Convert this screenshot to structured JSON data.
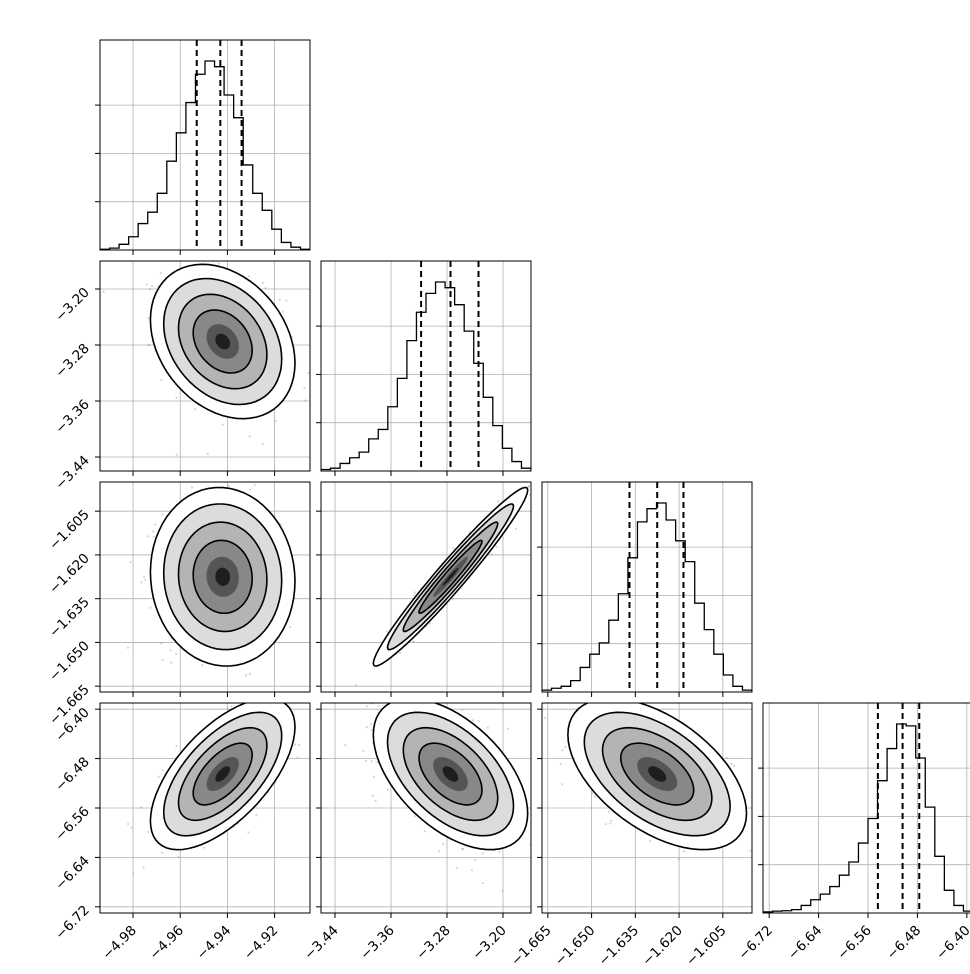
{
  "chart_data": {
    "type": "corner",
    "grid": true,
    "parameters": [
      {
        "ticks": [
          -4.98,
          -4.96,
          -4.94,
          -4.92
        ],
        "tick_labels": [
          "−4.98",
          "−4.96",
          "−4.94",
          "−4.92"
        ],
        "range": [
          -4.994,
          -4.905
        ],
        "quantiles": [
          -4.953,
          -4.943,
          -4.934
        ],
        "hist": [
          0.004,
          0.01,
          0.03,
          0.07,
          0.14,
          0.2,
          0.3,
          0.47,
          0.62,
          0.78,
          0.93,
          1.0,
          0.97,
          0.82,
          0.7,
          0.45,
          0.3,
          0.21,
          0.11,
          0.04,
          0.015,
          0.004
        ]
      },
      {
        "ticks": [
          -3.44,
          -3.36,
          -3.28,
          -3.2
        ],
        "tick_labels": [
          "−3.44",
          "−3.36",
          "−3.28",
          "−3.20"
        ],
        "range": [
          -3.46,
          -3.16
        ],
        "quantiles": [
          -3.317,
          -3.275,
          -3.235
        ],
        "hist": [
          0.008,
          0.015,
          0.04,
          0.07,
          0.1,
          0.17,
          0.22,
          0.34,
          0.49,
          0.69,
          0.84,
          0.94,
          1.0,
          0.97,
          0.88,
          0.74,
          0.57,
          0.39,
          0.24,
          0.12,
          0.05,
          0.015
        ]
      },
      {
        "ticks": [
          -1.665,
          -1.65,
          -1.635,
          -1.62,
          -1.605
        ],
        "tick_labels": [
          "−1.665",
          "−1.650",
          "−1.635",
          "−1.620",
          "−1.605"
        ],
        "range": [
          -1.667,
          -1.595
        ],
        "quantiles": [
          -1.637,
          -1.6275,
          -1.6185
        ],
        "hist": [
          0.01,
          0.02,
          0.03,
          0.06,
          0.13,
          0.2,
          0.26,
          0.38,
          0.52,
          0.71,
          0.9,
          0.97,
          1.0,
          0.91,
          0.8,
          0.69,
          0.47,
          0.33,
          0.2,
          0.09,
          0.03,
          0.01
        ]
      },
      {
        "ticks": [
          -6.72,
          -6.64,
          -6.56,
          -6.48,
          -6.4
        ],
        "tick_labels": [
          "−6.72",
          "−6.64",
          "−6.56",
          "−6.48",
          "−6.40"
        ],
        "range": [
          -6.73,
          -6.39
        ],
        "quantiles": [
          -6.544,
          -6.504,
          -6.477
        ],
        "hist": [
          0.006,
          0.01,
          0.012,
          0.018,
          0.04,
          0.07,
          0.1,
          0.14,
          0.2,
          0.27,
          0.37,
          0.5,
          0.7,
          0.87,
          1.0,
          0.99,
          0.82,
          0.56,
          0.3,
          0.12,
          0.04,
          0.01
        ]
      }
    ],
    "pairs": [
      {
        "row": 1,
        "col": 0,
        "center": [
          -4.942,
          -3.275
        ],
        "sd": [
          0.0125,
          0.045
        ],
        "rho": -0.28
      },
      {
        "row": 2,
        "col": 0,
        "center": [
          -4.942,
          -1.6275
        ],
        "sd": [
          0.0125,
          0.0125
        ],
        "rho": -0.05
      },
      {
        "row": 2,
        "col": 1,
        "center": [
          -3.275,
          -1.6275
        ],
        "sd": [
          0.045,
          0.0125
        ],
        "rho": 0.97
      },
      {
        "row": 3,
        "col": 0,
        "center": [
          -4.942,
          -6.505
        ],
        "sd": [
          0.0125,
          0.05
        ],
        "rho": 0.62
      },
      {
        "row": 3,
        "col": 1,
        "center": [
          -3.275,
          -6.505
        ],
        "sd": [
          0.045,
          0.05
        ],
        "rho": -0.52
      },
      {
        "row": 3,
        "col": 2,
        "center": [
          -1.6275,
          -6.505
        ],
        "sd": [
          0.0125,
          0.05
        ],
        "rho": -0.52
      }
    ]
  }
}
